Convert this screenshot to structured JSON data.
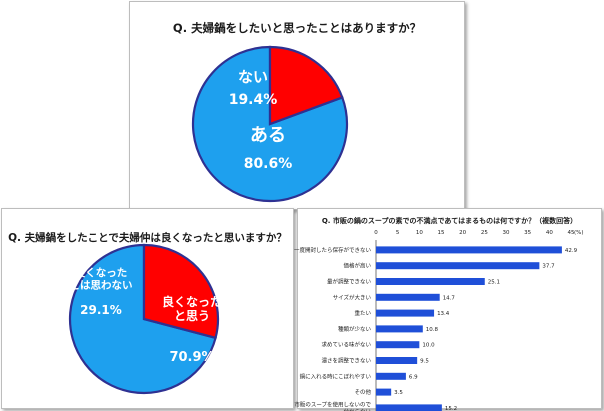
{
  "colors": {
    "blue": "#1ea0ee",
    "red": "#ff0000",
    "border": "#2e3192",
    "bar": "#1f4fd8"
  },
  "chart_data": [
    {
      "type": "pie",
      "title": "Q. 夫婦鍋をしたいと思ったことはありますか？",
      "slices": [
        {
          "label": "ある",
          "value": 80.6,
          "value_text": "80.6%",
          "color": "#1ea0ee"
        },
        {
          "label": "ない",
          "value": 19.4,
          "value_text": "19.4%",
          "color": "#ff0000"
        }
      ]
    },
    {
      "type": "pie",
      "title": "Q. 夫婦鍋をしたことで夫婦仲は良くなったと思いますか？",
      "slices": [
        {
          "label": "良くなった\nと思う",
          "value": 70.9,
          "value_text": "70.9%",
          "color": "#1ea0ee"
        },
        {
          "label": "良くなった\nとは思わない",
          "value": 29.1,
          "value_text": "29.1%",
          "color": "#ff0000"
        }
      ]
    },
    {
      "type": "bar",
      "orientation": "horizontal",
      "title": "Q. 市販の鍋のスープの素での不満点であてはまるものは何ですか？（複数回答）",
      "unit": "(%)",
      "xlim": [
        0,
        45
      ],
      "ticks": [
        "0",
        "5",
        "10",
        "15",
        "20",
        "25",
        "30",
        "35",
        "40",
        "45"
      ],
      "categories": [
        "一度開封したら保存ができない",
        "価格が高い",
        "量が調整できない",
        "サイズが大きい",
        "重たい",
        "種類が少ない",
        "求めている味がない",
        "濃さを調整できない",
        "鍋に入れる時にこぼれやすい",
        "その他",
        "市販のスープを使用しないので\n分からない"
      ],
      "values": [
        42.9,
        37.7,
        25.1,
        14.7,
        13.4,
        10.8,
        10.0,
        9.5,
        6.9,
        3.5,
        15.2
      ],
      "value_labels": [
        "42.9",
        "37.7",
        "25.1",
        "14.7",
        "13.4",
        "10.8",
        "10.0",
        "9.5",
        "6.9",
        "3.5",
        "15.2"
      ]
    }
  ]
}
